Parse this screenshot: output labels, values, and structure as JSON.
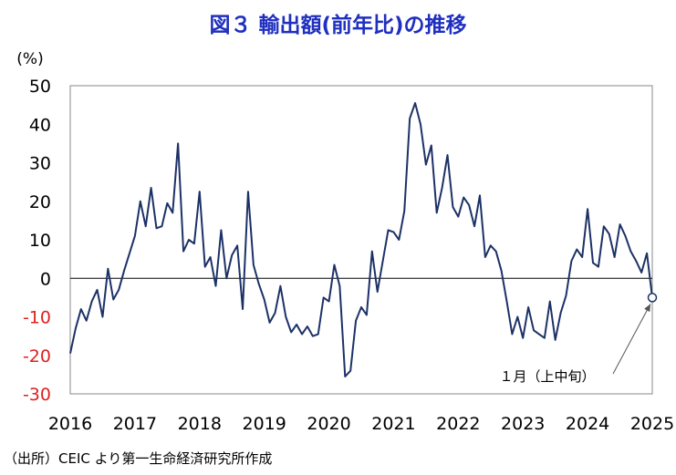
{
  "colors": {
    "title": "#1f2fbf",
    "line": "#1c3166",
    "negative_tick": "#e02020",
    "positive_tick": "#000000",
    "marker_fill": "#ffffff",
    "marker_stroke": "#1c3166",
    "frame": "#888888",
    "arrow": "#555555"
  },
  "source_note": "（出所）CEIC より第一生命経済研究所作成",
  "chart_data": {
    "type": "line",
    "title": "図３ 輸出額(前年比)の推移",
    "unit_label": "(%)",
    "ylim": [
      -30,
      50
    ],
    "yticks": [
      50,
      40,
      30,
      20,
      10,
      0,
      -10,
      -20,
      -30
    ],
    "x_year_labels": [
      "2016",
      "2017",
      "2018",
      "2019",
      "2020",
      "2021",
      "2022",
      "2023",
      "2024",
      "2025"
    ],
    "x_start": 2016,
    "x_end": 2025,
    "series": [
      {
        "name": "輸出額(前年比)",
        "start_year": 2016,
        "start_month": 1,
        "values": [
          -19.5,
          -13,
          -8,
          -11,
          -6,
          -3,
          -10,
          2.5,
          -5.5,
          -3,
          2,
          6.5,
          11,
          20,
          13.5,
          23.5,
          13,
          13.5,
          19.5,
          17,
          35,
          7,
          10,
          9,
          22.5,
          3,
          5.5,
          -2,
          12.5,
          0,
          6,
          8.5,
          -8,
          22.5,
          3.5,
          -1.5,
          -5.5,
          -11.5,
          -9,
          -2,
          -10,
          -14,
          -12,
          -14.5,
          -12.5,
          -15,
          -14.5,
          -5,
          -6,
          3.5,
          -2,
          -25.5,
          -24,
          -11,
          -7.5,
          -9.5,
          7,
          -3.5,
          4.5,
          12.5,
          12,
          10,
          17.5,
          41.5,
          45.5,
          40,
          29.5,
          34.5,
          17,
          23.5,
          32,
          18.5,
          16,
          21,
          19,
          13.5,
          21.5,
          5.5,
          8.5,
          7,
          2,
          -6,
          -14.5,
          -10,
          -15.5,
          -7.5,
          -13.5,
          -14.5,
          -15.5,
          -6,
          -16,
          -9,
          -4.5,
          4.5,
          7.5,
          5.5,
          18,
          4,
          3,
          13.5,
          11.5,
          5.5,
          14,
          11,
          7,
          4.5,
          1.5,
          6.5,
          -5
        ]
      }
    ],
    "latest_point": {
      "value": -5,
      "label": "１月（上中旬）"
    }
  }
}
